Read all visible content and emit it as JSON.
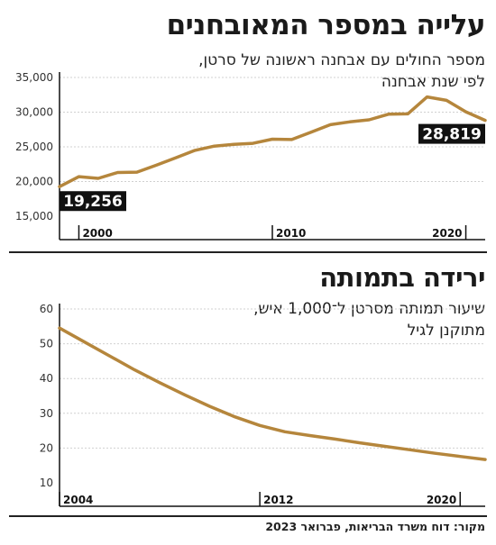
{
  "colors": {
    "line": "#b5863c",
    "grid": "#d0d0d0",
    "axis": "#111111",
    "label_bg": "#111111"
  },
  "top": {
    "title": "עלייה במספר המאובחנים",
    "subtitle_line1": "מספר החולים עם אבחנה ראשונה של סרטן,",
    "subtitle_line2": "לפי שנת אבחנה"
  },
  "bottom": {
    "title": "ירידה בתמותה",
    "subtitle_line1": "שיעור תמותה מסרטן ל־1,000 איש,",
    "subtitle_line2": "מתוקנן לגיל"
  },
  "source": "מקור: דוח משרד הבריאות, פברואר 2023",
  "chart_data": [
    {
      "type": "line",
      "title": "עלייה במספר המאובחנים",
      "subtitle": "מספר החולים עם אבחנה ראשונה של סרטן, לפי שנת אבחנה",
      "x": [
        1999,
        2000,
        2001,
        2002,
        2003,
        2004,
        2005,
        2006,
        2007,
        2008,
        2009,
        2010,
        2011,
        2012,
        2013,
        2014,
        2015,
        2016,
        2017,
        2018,
        2019,
        2020,
        2021
      ],
      "y": [
        19256,
        20700,
        20450,
        21300,
        21350,
        22350,
        23400,
        24500,
        25100,
        25350,
        25500,
        26100,
        26050,
        27100,
        28200,
        28600,
        28900,
        29700,
        29750,
        32200,
        31700,
        30050,
        28819
      ],
      "xlim": [
        1999,
        2021
      ],
      "ylim": [
        15000,
        35000
      ],
      "yticks": [
        15000,
        20000,
        25000,
        30000,
        35000
      ],
      "ytick_labels": [
        "15,000",
        "20,000",
        "25,000",
        "30,000",
        "35,000"
      ],
      "xticks": [
        2000,
        2010,
        2020
      ],
      "xtick_labels": [
        "2000",
        "2010",
        "2020"
      ],
      "annotations": [
        {
          "text": "19,256",
          "x": 1999,
          "y": 19256
        },
        {
          "text": "28,819",
          "x": 2021,
          "y": 28819
        }
      ],
      "grid": true
    },
    {
      "type": "line",
      "title": "ירידה בתמותה",
      "subtitle": "שיעור תמותה מסרטן ל־1,000 איש, מתוקנן לגיל",
      "x": [
        2004,
        2005,
        2006,
        2007,
        2008,
        2009,
        2010,
        2011,
        2012,
        2013,
        2014,
        2015,
        2016,
        2017,
        2018,
        2019,
        2020,
        2021
      ],
      "y": [
        54.5,
        50.5,
        46.5,
        42.5,
        38.8,
        35.3,
        32.0,
        29.0,
        26.5,
        24.7,
        23.6,
        22.6,
        21.5,
        20.5,
        19.5,
        18.5,
        17.6,
        16.7
      ],
      "xlim": [
        2004,
        2021
      ],
      "ylim": [
        10,
        60
      ],
      "yticks": [
        10,
        20,
        30,
        40,
        50,
        60
      ],
      "ytick_labels": [
        "10",
        "20",
        "30",
        "40",
        "50",
        "60"
      ],
      "xticks": [
        2004,
        2012,
        2020
      ],
      "xtick_labels": [
        "2004",
        "2012",
        "2020"
      ],
      "grid": true
    }
  ]
}
